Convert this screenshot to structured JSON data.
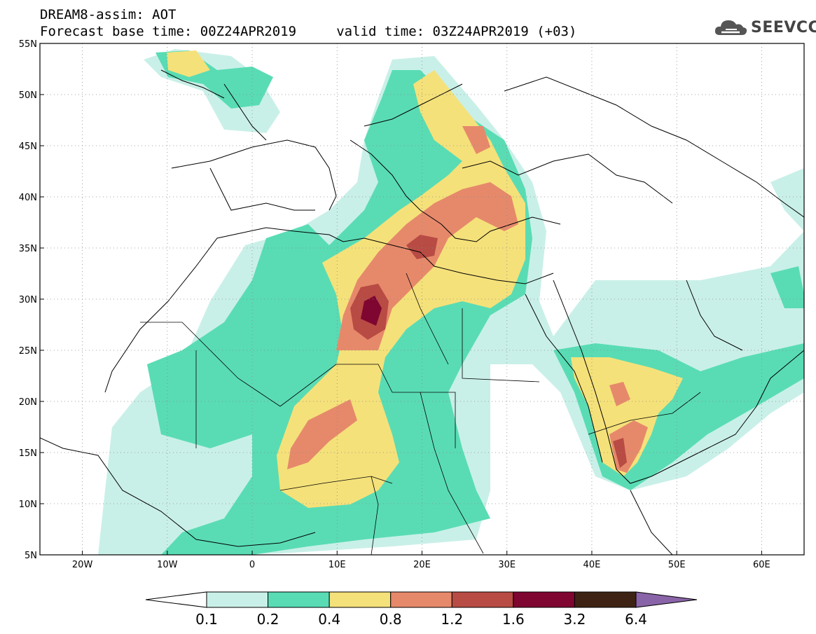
{
  "header": {
    "title_line1": "DREAM8-assim: AOT",
    "title_line2": "Forecast base time: 00Z24APR2019     valid time: 03Z24APR2019 (+03)"
  },
  "logo": {
    "text": "SEEVCCC",
    "icon": "cloud-logo-icon"
  },
  "map": {
    "projection": "lat-lon",
    "lon_range": [
      -25,
      65
    ],
    "lat_range": [
      5,
      55
    ],
    "grid": true,
    "grid_style": "dotted",
    "xticks": [
      "20W",
      "10W",
      "0",
      "10E",
      "20E",
      "30E",
      "40E",
      "50E",
      "60E"
    ],
    "xtick_values": [
      -20,
      -10,
      0,
      10,
      20,
      30,
      40,
      50,
      60
    ],
    "yticks": [
      "55N",
      "50N",
      "45N",
      "40N",
      "35N",
      "30N",
      "25N",
      "20N",
      "15N",
      "10N",
      "5N"
    ],
    "ytick_values": [
      55,
      50,
      45,
      40,
      35,
      30,
      25,
      20,
      15,
      10,
      5
    ]
  },
  "colorbar": {
    "levels": [
      "0.1",
      "0.2",
      "0.4",
      "0.8",
      "1.2",
      "1.6",
      "3.2",
      "6.4"
    ],
    "colors": [
      "#ffffff",
      "#c9f0e8",
      "#59dcb4",
      "#f5e17a",
      "#e6896b",
      "#b84b43",
      "#7f0630",
      "#3e2314",
      "#8a64a8"
    ]
  }
}
